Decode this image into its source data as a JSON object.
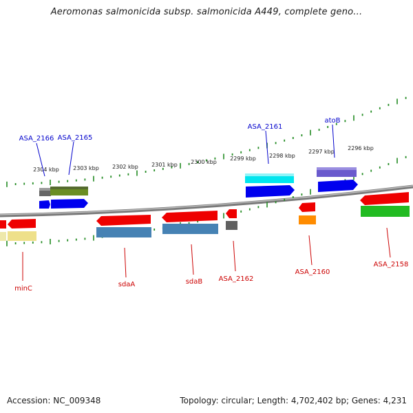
{
  "title": "Aeromonas salmonicida subsp. salmonicida A449, complete geno...",
  "footer": {
    "accession": "Accession: NC_009348",
    "topology": "Topology: circular; Length: 4,702,402 bp; Genes: 4,231"
  },
  "scale_labels": [
    "2304 kbp",
    "2303 kbp",
    "2302 kbp",
    "2301 kbp",
    "2300 kbp",
    "2299 kbp",
    "2298 kbp",
    "2297 kbp",
    "2296 kbp"
  ],
  "top_genes": [
    "ASA_2166",
    "ASA_2165",
    "ASA_2161",
    "atoB"
  ],
  "bottom_genes": [
    "minC",
    "sdaA",
    "sdaB",
    "ASA_2162",
    "ASA_2160",
    "ASA_2158"
  ],
  "colors": {
    "forward_label": "#0000cc",
    "reverse_label": "#cc0000",
    "tick": "#228b22",
    "backbone": "#8a8a8a"
  }
}
